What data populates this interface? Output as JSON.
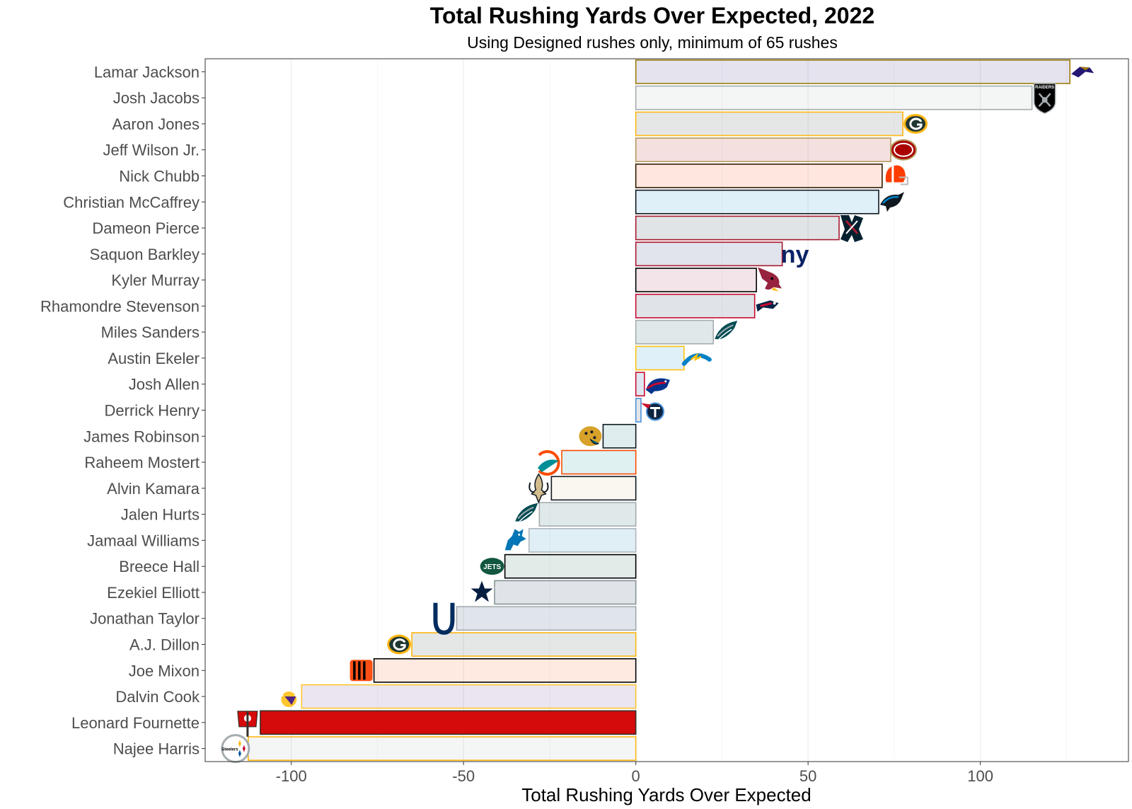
{
  "chart_data": {
    "type": "bar",
    "orientation": "horizontal",
    "title": "Total Rushing Yards Over Expected, 2022",
    "subtitle": "Using Designed rushes only, minimum of 65 rushes",
    "xlabel": "Total Rushing Yards Over Expected",
    "ylabel": "",
    "xlim": [
      -125,
      143
    ],
    "xticks": [
      -100,
      -50,
      0,
      50,
      100
    ],
    "grid": true,
    "legend": "none",
    "bars": [
      {
        "player": "Lamar Jackson",
        "value": 126,
        "team": "BAL",
        "fill": "#241773",
        "outline": "#9E7C0C",
        "logo_icon": "ravens-logo-icon"
      },
      {
        "player": "Josh Jacobs",
        "value": 115,
        "team": "LV",
        "fill": "#A5ACAF",
        "outline": "#A5ACAF",
        "logo_icon": "raiders-logo-icon"
      },
      {
        "player": "Aaron Jones",
        "value": 77.5,
        "team": "GB",
        "fill": "#203731",
        "outline": "#FFB612",
        "logo_icon": "packers-logo-icon"
      },
      {
        "player": "Jeff Wilson Jr.",
        "value": 74,
        "team": "SF",
        "fill": "#AA0000",
        "outline": "#B3995D",
        "logo_icon": "49ers-logo-icon"
      },
      {
        "player": "Nick Chubb",
        "value": 71.5,
        "team": "CLE",
        "fill": "#FF3C00",
        "outline": "#311D00",
        "logo_icon": "browns-logo-icon"
      },
      {
        "player": "Christian McCaffrey",
        "value": 70.5,
        "team": "CAR",
        "fill": "#0085CA",
        "outline": "#101820",
        "logo_icon": "panthers-logo-icon"
      },
      {
        "player": "Dameon Pierce",
        "value": 59,
        "team": "HOU",
        "fill": "#03202F",
        "outline": "#A71930",
        "logo_icon": "texans-logo-icon"
      },
      {
        "player": "Saquon Barkley",
        "value": 42.5,
        "team": "NYG",
        "fill": "#0B2265",
        "outline": "#A71930",
        "logo_icon": "giants-logo-icon"
      },
      {
        "player": "Kyler Murray",
        "value": 35,
        "team": "ARI",
        "fill": "#97233F",
        "outline": "#000000",
        "logo_icon": "cardinals-logo-icon"
      },
      {
        "player": "Rhamondre Stevenson",
        "value": 34.5,
        "team": "NE",
        "fill": "#002244",
        "outline": "#C60C30",
        "logo_icon": "patriots-logo-icon"
      },
      {
        "player": "Miles Sanders",
        "value": 22.5,
        "team": "PHI",
        "fill": "#004C54",
        "outline": "#A5ACAF",
        "logo_icon": "eagles-logo-icon"
      },
      {
        "player": "Austin Ekeler",
        "value": 14,
        "team": "LAC",
        "fill": "#0080C6",
        "outline": "#FFC20E",
        "logo_icon": "chargers-logo-icon"
      },
      {
        "player": "Josh Allen",
        "value": 2.5,
        "team": "BUF",
        "fill": "#00338D",
        "outline": "#C60C30",
        "logo_icon": "bills-logo-icon"
      },
      {
        "player": "Derrick Henry",
        "value": 1.5,
        "team": "TEN",
        "fill": "#0C2340",
        "outline": "#4B92DB",
        "logo_icon": "titans-logo-icon"
      },
      {
        "player": "James Robinson",
        "value": -9.5,
        "team": "JAX",
        "fill": "#006778",
        "outline": "#101820",
        "logo_icon": "jaguars-logo-icon"
      },
      {
        "player": "Raheem Mostert",
        "value": -21.5,
        "team": "MIA",
        "fill": "#008E97",
        "outline": "#FC4C02",
        "logo_icon": "dolphins-logo-icon"
      },
      {
        "player": "Alvin Kamara",
        "value": -24.5,
        "team": "NO",
        "fill": "#D3BC8D",
        "outline": "#101820",
        "logo_icon": "saints-logo-icon"
      },
      {
        "player": "Jalen Hurts",
        "value": -28,
        "team": "PHI",
        "fill": "#004C54",
        "outline": "#A5ACAF",
        "logo_icon": "eagles-logo-icon"
      },
      {
        "player": "Jamaal Williams",
        "value": -31,
        "team": "DET",
        "fill": "#0076B6",
        "outline": "#B0B7BC",
        "logo_icon": "lions-logo-icon"
      },
      {
        "player": "Breece Hall",
        "value": -38,
        "team": "NYJ",
        "fill": "#125740",
        "outline": "#000000",
        "logo_icon": "jets-logo-icon"
      },
      {
        "player": "Ezekiel Elliott",
        "value": -41,
        "team": "DAL",
        "fill": "#041E42",
        "outline": "#869397",
        "logo_icon": "cowboys-logo-icon"
      },
      {
        "player": "Jonathan Taylor",
        "value": -52,
        "team": "IND",
        "fill": "#002C5F",
        "outline": "#A2AAAD",
        "logo_icon": "colts-logo-icon"
      },
      {
        "player": "A.J. Dillon",
        "value": -65,
        "team": "GB",
        "fill": "#203731",
        "outline": "#FFB612",
        "logo_icon": "packers-logo-icon"
      },
      {
        "player": "Joe Mixon",
        "value": -76,
        "team": "CIN",
        "fill": "#FB4F14",
        "outline": "#000000",
        "logo_icon": "bengals-logo-icon"
      },
      {
        "player": "Dalvin Cook",
        "value": -97,
        "team": "MIN",
        "fill": "#4F2683",
        "outline": "#FFC62F",
        "logo_icon": "vikings-logo-icon"
      },
      {
        "player": "Leonard Fournette",
        "value": -109,
        "team": "TB",
        "fill": "#D50A0A",
        "outline": "#34302B",
        "solid": true,
        "logo_icon": "buccaneers-logo-icon"
      },
      {
        "player": "Najee Harris",
        "value": -112.5,
        "team": "PIT",
        "fill": "#A5ACAF",
        "outline": "#FFB612",
        "logo_icon": "steelers-logo-icon"
      }
    ]
  },
  "logos": {
    "raiders_text": "RAIDERS",
    "giants_text": "ny",
    "jets_text": "JETS",
    "steelers_text": "Steelers"
  }
}
